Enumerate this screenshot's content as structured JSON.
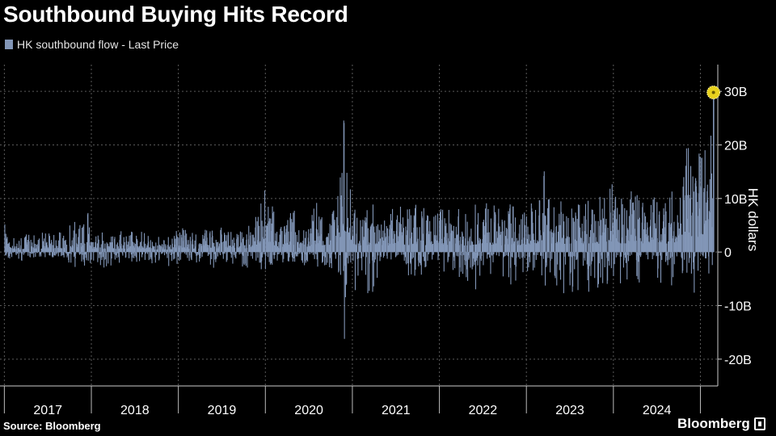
{
  "title": "Southbound Buying Hits Record",
  "legend": {
    "label": "HK southbound flow - Last Price",
    "color": "#8296b7"
  },
  "source": "Source: Bloomberg",
  "brand": "Bloomberg",
  "colors": {
    "background": "#000000",
    "bars": "#8296b7",
    "grid": "#5a5a5a",
    "highlight": "#e8d21d"
  },
  "chart_data": {
    "type": "bar",
    "ylabel": "HK dollars",
    "ylim": [
      -25,
      35
    ],
    "yunit": "B",
    "yticks": [
      {
        "value": 30,
        "label": "30B"
      },
      {
        "value": 20,
        "label": "20B"
      },
      {
        "value": 10,
        "label": "10B"
      },
      {
        "value": 0,
        "label": "0"
      },
      {
        "value": -10,
        "label": "-10B"
      },
      {
        "value": -20,
        "label": "-20B"
      }
    ],
    "xrange": [
      2016.95,
      2025.2
    ],
    "years": [
      "2017",
      "2018",
      "2019",
      "2020",
      "2021",
      "2022",
      "2023",
      "2024"
    ],
    "grid": true,
    "legend_position": "top-left",
    "record": {
      "x": 2025.15,
      "value": 29.8
    },
    "x": [
      2017.0,
      2017.1,
      2017.2,
      2017.3,
      2017.4,
      2017.5,
      2017.6,
      2017.7,
      2017.8,
      2017.9,
      2017.95,
      2018.0,
      2018.05,
      2018.1,
      2018.2,
      2018.3,
      2018.4,
      2018.5,
      2018.6,
      2018.7,
      2018.8,
      2018.9,
      2019.0,
      2019.1,
      2019.2,
      2019.3,
      2019.4,
      2019.5,
      2019.6,
      2019.7,
      2019.8,
      2019.9,
      2020.0,
      2020.1,
      2020.15,
      2020.2,
      2020.3,
      2020.4,
      2020.5,
      2020.6,
      2020.7,
      2020.8,
      2020.85,
      2020.9,
      2020.95,
      2021.0,
      2021.05,
      2021.1,
      2021.2,
      2021.3,
      2021.4,
      2021.5,
      2021.6,
      2021.7,
      2021.8,
      2021.9,
      2022.0,
      2022.1,
      2022.2,
      2022.3,
      2022.4,
      2022.5,
      2022.6,
      2022.7,
      2022.8,
      2022.9,
      2023.0,
      2023.1,
      2023.2,
      2023.3,
      2023.4,
      2023.5,
      2023.6,
      2023.7,
      2023.8,
      2023.9,
      2024.0,
      2024.1,
      2024.2,
      2024.3,
      2024.4,
      2024.5,
      2024.6,
      2024.7,
      2024.8,
      2024.85,
      2024.9,
      2024.95,
      2025.0,
      2025.05,
      2025.1,
      2025.15
    ],
    "high": [
      6,
      3,
      3,
      4,
      4,
      4,
      4,
      5,
      6,
      6,
      10.5,
      4,
      4,
      4,
      4,
      4,
      4,
      4,
      4,
      3,
      3,
      3,
      5,
      4,
      4,
      5,
      4,
      5,
      4,
      4,
      5,
      8,
      16,
      7,
      4,
      6,
      10,
      4,
      7,
      11,
      6,
      10,
      16,
      26.5,
      23,
      10,
      7,
      8,
      9,
      9,
      7,
      9,
      8,
      9,
      9,
      8,
      8,
      9,
      9,
      8,
      9,
      11,
      9,
      8,
      10,
      8,
      9,
      10,
      16,
      9,
      10,
      10,
      9,
      11,
      9,
      13,
      13,
      10,
      12,
      11,
      9,
      12,
      10,
      12,
      14,
      21.5,
      14,
      15,
      22,
      22,
      18,
      29.8
    ],
    "low": [
      -2,
      -1,
      -2,
      -1,
      -1,
      -1,
      -1,
      -2,
      -3,
      -3,
      -2,
      -4,
      -3,
      -3,
      -3,
      -2,
      -2,
      -2,
      -3,
      -3,
      -2,
      -3,
      -3,
      -2,
      -2,
      -3,
      -3,
      -2,
      -2,
      -3,
      -3,
      -3,
      -4,
      -3,
      -2,
      -2,
      -2,
      -3,
      -2,
      -3,
      -3,
      -4,
      -5,
      -20,
      -7,
      -7,
      -13,
      -8,
      -9,
      -5,
      -6,
      -4,
      -4,
      -5,
      -5,
      -4,
      -4,
      -5,
      -6,
      -5,
      -8,
      -5,
      -4,
      -4,
      -7,
      -5,
      -5,
      -5,
      -8,
      -13.5,
      -9,
      -8,
      -7,
      -10,
      -7,
      -6,
      -6,
      -6,
      -5,
      -6,
      -5,
      -7,
      -6,
      -8,
      -6,
      -6,
      -10,
      -5,
      -4,
      -9,
      -8,
      -5
    ]
  }
}
